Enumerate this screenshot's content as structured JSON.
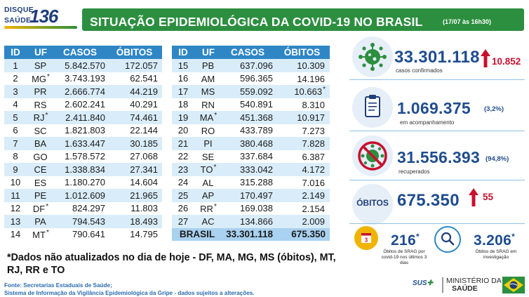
{
  "logo": {
    "line1": "DISQUE",
    "line2": "SAÚDE",
    "number": "136"
  },
  "header": {
    "title": "SITUAÇÃO EPIDEMIOLÓGICA DA COVID-19 NO BRASIL",
    "date": "(17/07 às 16h30)"
  },
  "table": {
    "headers": [
      "ID",
      "UF",
      "CASOS",
      "ÓBITOS"
    ],
    "left_rows": [
      {
        "id": "1",
        "uf": "SP",
        "casos": "5.842.570",
        "obitos": "172.057",
        "star": ""
      },
      {
        "id": "2",
        "uf": "MG",
        "casos": "3.743.193",
        "obitos": "62.541",
        "star": "*"
      },
      {
        "id": "3",
        "uf": "PR",
        "casos": "2.666.774",
        "obitos": "44.219",
        "star": ""
      },
      {
        "id": "4",
        "uf": "RS",
        "casos": "2.602.241",
        "obitos": "40.291",
        "star": ""
      },
      {
        "id": "5",
        "uf": "RJ",
        "casos": "2.411.840",
        "obitos": "74.461",
        "star": "*"
      },
      {
        "id": "6",
        "uf": "SC",
        "casos": "1.821.803",
        "obitos": "22.144",
        "star": ""
      },
      {
        "id": "7",
        "uf": "BA",
        "casos": "1.633.447",
        "obitos": "30.185",
        "star": ""
      },
      {
        "id": "8",
        "uf": "GO",
        "casos": "1.578.572",
        "obitos": "27.068",
        "star": ""
      },
      {
        "id": "9",
        "uf": "CE",
        "casos": "1.338.834",
        "obitos": "27.341",
        "star": ""
      },
      {
        "id": "10",
        "uf": "ES",
        "casos": "1.180.270",
        "obitos": "14.604",
        "star": ""
      },
      {
        "id": "11",
        "uf": "PE",
        "casos": "1.012.609",
        "obitos": "21.965",
        "star": ""
      },
      {
        "id": "12",
        "uf": "DF",
        "casos": "824.297",
        "obitos": "11.803",
        "star": "*"
      },
      {
        "id": "13",
        "uf": "PA",
        "casos": "794.543",
        "obitos": "18.493",
        "star": ""
      },
      {
        "id": "14",
        "uf": "MT",
        "casos": "790.641",
        "obitos": "14.795",
        "star": "*"
      }
    ],
    "right_rows": [
      {
        "id": "15",
        "uf": "PB",
        "casos": "637.096",
        "obitos": "10.309",
        "star": "",
        "ostar": ""
      },
      {
        "id": "16",
        "uf": "AM",
        "casos": "596.365",
        "obitos": "14.196",
        "star": "",
        "ostar": ""
      },
      {
        "id": "17",
        "uf": "MS",
        "casos": "559.092",
        "obitos": "10.663",
        "star": "",
        "ostar": "*"
      },
      {
        "id": "18",
        "uf": "RN",
        "casos": "540.891",
        "obitos": "8.310",
        "star": "",
        "ostar": ""
      },
      {
        "id": "19",
        "uf": "MA",
        "casos": "451.368",
        "obitos": "10.917",
        "star": "*",
        "ostar": ""
      },
      {
        "id": "20",
        "uf": "RO",
        "casos": "433.789",
        "obitos": "7.273",
        "star": "",
        "ostar": ""
      },
      {
        "id": "21",
        "uf": "PI",
        "casos": "380.468",
        "obitos": "7.828",
        "star": "",
        "ostar": ""
      },
      {
        "id": "22",
        "uf": "SE",
        "casos": "337.684",
        "obitos": "6.387",
        "star": "",
        "ostar": ""
      },
      {
        "id": "23",
        "uf": "TO",
        "casos": "333.042",
        "obitos": "4.172",
        "star": "*",
        "ostar": ""
      },
      {
        "id": "24",
        "uf": "AL",
        "casos": "315.288",
        "obitos": "7.016",
        "star": "",
        "ostar": ""
      },
      {
        "id": "25",
        "uf": "AP",
        "casos": "170.497",
        "obitos": "2.149",
        "star": "",
        "ostar": ""
      },
      {
        "id": "26",
        "uf": "RR",
        "casos": "169.038",
        "obitos": "2.154",
        "star": "*",
        "ostar": ""
      },
      {
        "id": "27",
        "uf": "AC",
        "casos": "134.866",
        "obitos": "2.009",
        "star": "",
        "ostar": ""
      }
    ],
    "total": {
      "label": "BRASIL",
      "casos": "33.301.118",
      "obitos": "675.350"
    }
  },
  "panel": {
    "confirmed": {
      "value": "33.301.118",
      "label": "casos confirmados",
      "delta": "10.852",
      "icon": "virus-icon"
    },
    "monitoring": {
      "value": "1.069.375",
      "label": "em acompanhamento",
      "pct": "(3,2%)",
      "icon": "clipboard-icon"
    },
    "recovered": {
      "value": "31.556.393",
      "label": "recuperados",
      "pct": "(94,8%)",
      "icon": "crossed-virus-icon"
    },
    "deaths": {
      "label": "ÓBITOS",
      "value": "675.350",
      "delta": "55"
    },
    "srag_recent": {
      "value": "216",
      "star": "*",
      "label": "Óbitos de SRAG por covid-19 nos últimos 3 dias",
      "icon": "calendar-icon"
    },
    "srag_investigation": {
      "value": "3.206",
      "star": "*",
      "label": "Óbitos de SRAG em investigação",
      "icon": "magnifier-icon"
    }
  },
  "footnote": "*Dados não atualizados no dia de hoje - DF, MA, MG, MS (óbitos), MT, RJ, RR e TO",
  "source": {
    "line1": "Fonte: Secretarias Estaduais de Saúde;",
    "line2": "Sistema de Informação da Vigilância Epidemiológica da Gripe - dados sujeitos a alterações."
  },
  "brand": {
    "sus": "SUS",
    "ministry_line1": "MINISTÉRIO DA",
    "ministry_line2": "SAÚDE"
  },
  "colors": {
    "header_green": "#2c8f3f",
    "table_blue": "#2f86c5",
    "value_blue": "#1f4d8f",
    "delta_red": "#c8102e"
  }
}
